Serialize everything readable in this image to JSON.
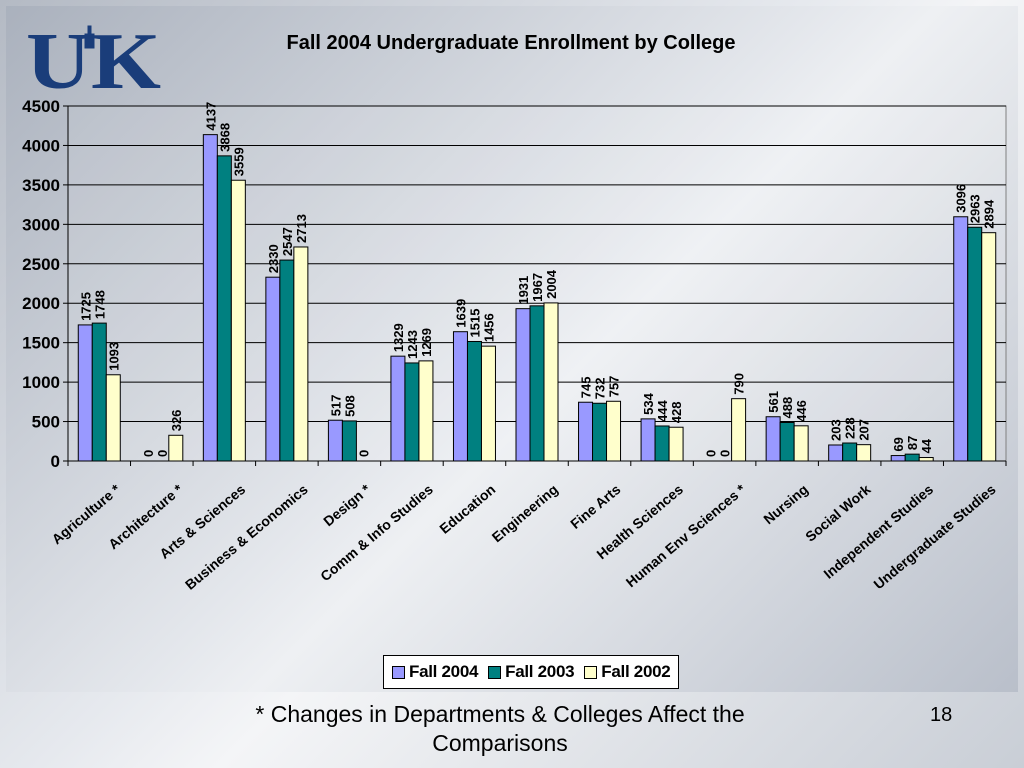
{
  "chart_data": {
    "type": "bar",
    "title": "Fall 2004 Undergraduate Enrollment by College",
    "xlabel": "",
    "ylabel": "",
    "ylim": [
      0,
      4500
    ],
    "yticks": [
      0,
      500,
      1000,
      1500,
      2000,
      2500,
      3000,
      3500,
      4000,
      4500
    ],
    "grid": true,
    "legend_position": "bottom",
    "categories": [
      "Agriculture *",
      "Architecture *",
      "Arts & Sciences",
      "Business & Economics",
      "Design *",
      "Comm & Info Studies",
      "Education",
      "Engineering",
      "Fine Arts",
      "Health Sciences",
      "Human Env Sciences *",
      "Nursing",
      "Social Work",
      "Independent Studies",
      "Undergraduate Studies"
    ],
    "series": [
      {
        "name": "Fall 2004",
        "color": "#9999ff",
        "values": [
          1725,
          0,
          4137,
          2330,
          517,
          1329,
          1639,
          1931,
          745,
          534,
          0,
          561,
          203,
          69,
          3096
        ],
        "labels": [
          "1725",
          "0",
          "4137",
          "2330",
          "517",
          "1329",
          "1639",
          "1931",
          "745",
          "534",
          "0",
          "561",
          "203",
          "69",
          "3096"
        ]
      },
      {
        "name": "Fall 2003",
        "color": "#008080",
        "values": [
          1748,
          0,
          3868,
          2547,
          508,
          1243,
          1515,
          1967,
          732,
          444,
          0,
          488,
          228,
          87,
          2963
        ],
        "labels": [
          "1748",
          "0",
          "3868",
          "2547",
          "508",
          "1243",
          "1515",
          "1967",
          "732",
          "444",
          "0",
          "488",
          "228",
          "87",
          "2963"
        ]
      },
      {
        "name": "Fall 2002",
        "color": "#ffffcc",
        "values": [
          1093,
          326,
          3559,
          2713,
          0,
          1269,
          1456,
          2004,
          757,
          428,
          790,
          446,
          207,
          44,
          2894
        ],
        "labels": [
          "1093",
          "326",
          "3559",
          "2713",
          "0",
          "1269",
          "1456",
          "2004",
          "757",
          "428",
          "790",
          "446",
          "207",
          "44",
          "2894"
        ]
      }
    ]
  },
  "logo": {
    "text": "UK",
    "color": "#1a3d7a"
  },
  "footnote": "* Changes in Departments & Colleges Affect the Comparisons",
  "page_number": "18"
}
